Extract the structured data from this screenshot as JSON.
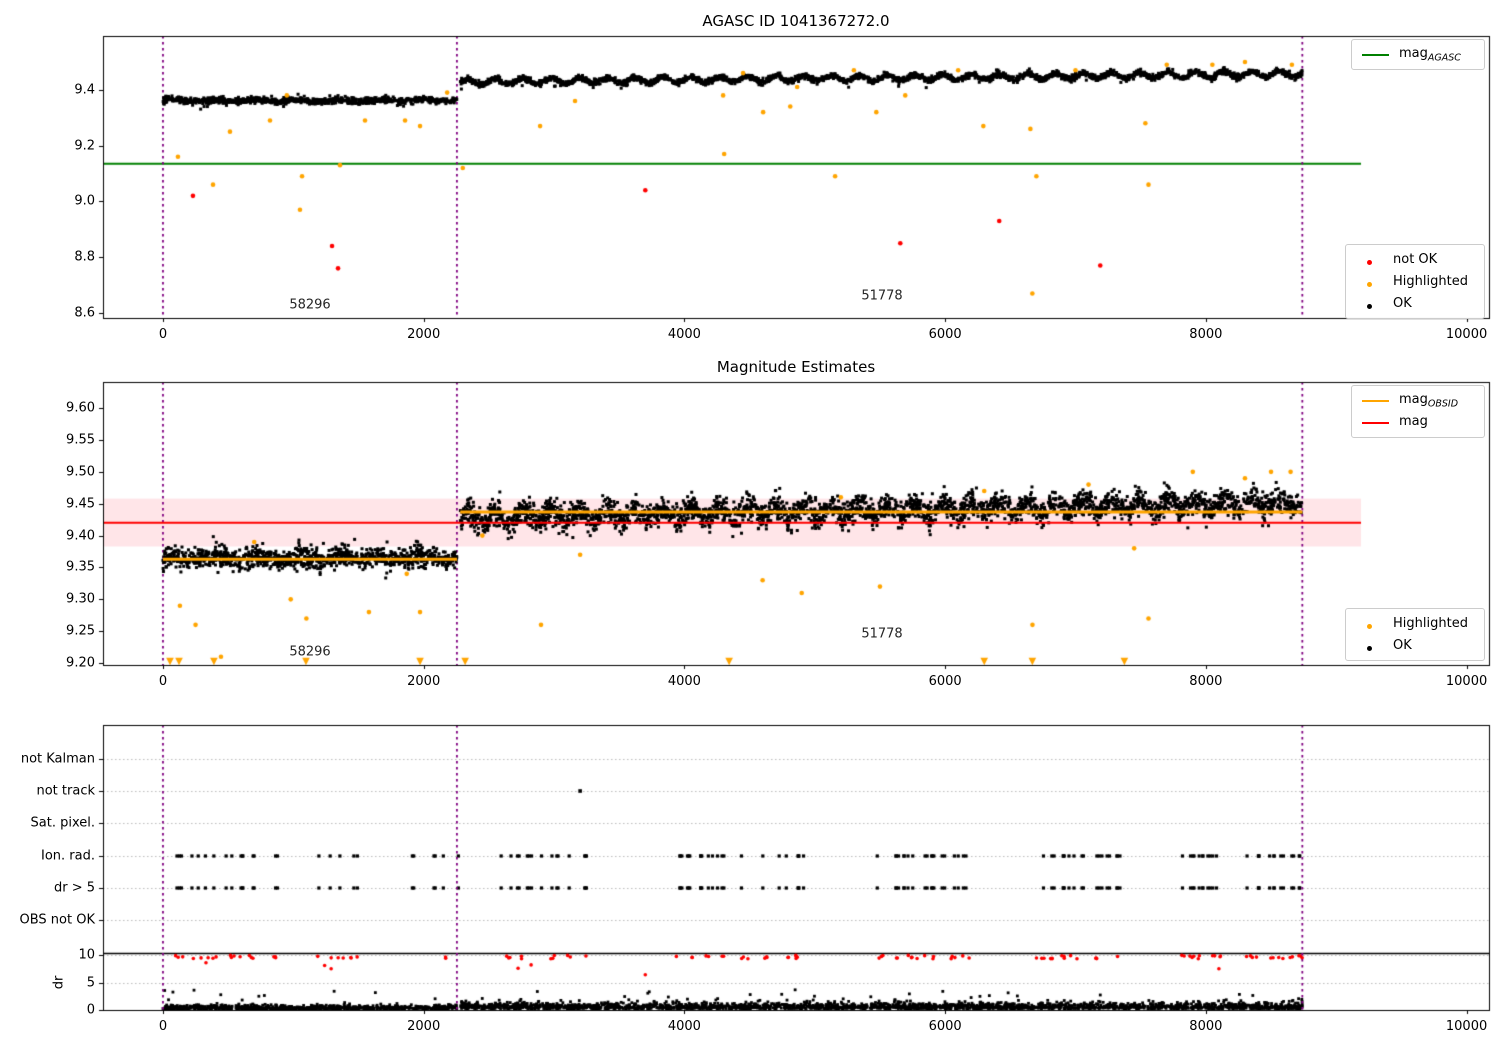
{
  "colors": {
    "ok": "#000000",
    "highlighted": "#ffa500",
    "not_ok": "#ff0000",
    "agasc_line": "#008000",
    "obsid_line": "#ffa500",
    "mag_line": "#ff0000",
    "mag_band": "rgba(255,110,130,0.18)",
    "vline": "#800080",
    "grid": "#bbbbbb",
    "background": "#ffffff"
  },
  "chart_data": [
    {
      "id": "agasc_mag_plot",
      "type": "scatter",
      "title": "AGASC ID 1041367272.0",
      "xlim": [
        -460,
        10172
      ],
      "ylim": [
        8.582,
        9.593
      ],
      "xticks": {
        "values": [
          0,
          2000,
          4000,
          6000,
          8000,
          10000
        ],
        "labels": [
          "0",
          "2000",
          "4000",
          "6000",
          "8000",
          "10000"
        ]
      },
      "yticks": {
        "values": [
          8.6,
          8.8,
          9.0,
          9.2,
          9.4
        ],
        "labels": [
          "8.6",
          "8.8",
          "9.0",
          "9.2",
          "9.4"
        ]
      },
      "agasc_mag": 9.135,
      "line_x_end": 9190,
      "vlines": [
        0,
        2255,
        8740
      ],
      "obsids": [
        {
          "label": "58296",
          "x0": 0,
          "x1": 2255,
          "label_pos": [
            1128,
            8.632
          ]
        },
        {
          "label": "51778",
          "x0": 2280,
          "x1": 8740,
          "label_pos": [
            5520,
            8.664
          ]
        }
      ],
      "ok_segments": [
        {
          "x0": 0,
          "x1": 2255,
          "n": 950,
          "base": 9.362,
          "trend": 0.0,
          "wave_amp": 0.003,
          "wave_period": 320,
          "noise": 0.0055
        },
        {
          "x0": 2280,
          "x1": 8740,
          "n": 2700,
          "base": 9.428,
          "trend": 0.03,
          "wave_amp": 0.01,
          "wave_period": 215,
          "noise": 0.005
        }
      ],
      "highlighted": [
        [
          115,
          9.16
        ],
        [
          384,
          9.06
        ],
        [
          514,
          9.25
        ],
        [
          821,
          9.29
        ],
        [
          950,
          9.38
        ],
        [
          1051,
          8.97
        ],
        [
          1067,
          9.09
        ],
        [
          1358,
          9.13
        ],
        [
          1550,
          9.29
        ],
        [
          1857,
          9.29
        ],
        [
          1972,
          9.27
        ],
        [
          2180,
          9.39
        ],
        [
          2300,
          9.12
        ],
        [
          2893,
          9.27
        ],
        [
          3161,
          9.36
        ],
        [
          4297,
          9.38
        ],
        [
          4305,
          9.17
        ],
        [
          4450,
          9.46
        ],
        [
          4604,
          9.32
        ],
        [
          4812,
          9.34
        ],
        [
          4865,
          9.41
        ],
        [
          5156,
          9.09
        ],
        [
          5300,
          9.47
        ],
        [
          5472,
          9.32
        ],
        [
          5694,
          9.38
        ],
        [
          6100,
          9.47
        ],
        [
          6293,
          9.27
        ],
        [
          6654,
          9.26
        ],
        [
          6669,
          8.67
        ],
        [
          6700,
          9.09
        ],
        [
          7000,
          9.47
        ],
        [
          7536,
          9.28
        ],
        [
          7560,
          9.06
        ],
        [
          7700,
          9.49
        ],
        [
          8050,
          9.49
        ],
        [
          8300,
          9.5
        ],
        [
          8660,
          9.49
        ]
      ],
      "not_ok": [
        [
          230,
          9.02
        ],
        [
          1297,
          8.84
        ],
        [
          1343,
          8.76
        ],
        [
          3700,
          9.04
        ],
        [
          5656,
          8.85
        ],
        [
          6415,
          8.93
        ],
        [
          7190,
          8.77
        ]
      ],
      "legend": {
        "line": {
          "base": "mag",
          "sub": "AGASC",
          "color": "#008000"
        },
        "points": [
          {
            "label": "not OK",
            "color": "#ff0000"
          },
          {
            "label": "Highlighted",
            "color": "#ffa500"
          },
          {
            "label": "OK",
            "color": "#000000"
          }
        ]
      }
    },
    {
      "id": "magnitude_estimates_plot",
      "type": "scatter",
      "title": "Magnitude Estimates",
      "xlim": [
        -460,
        10172
      ],
      "ylim": [
        9.197,
        9.641
      ],
      "xticks": {
        "values": [
          0,
          2000,
          4000,
          6000,
          8000,
          10000
        ],
        "labels": [
          "0",
          "2000",
          "4000",
          "6000",
          "8000",
          "10000"
        ]
      },
      "yticks": {
        "values": [
          9.2,
          9.25,
          9.3,
          9.35,
          9.4,
          9.45,
          9.5,
          9.55,
          9.6
        ],
        "labels": [
          "9.20",
          "9.25",
          "9.30",
          "9.35",
          "9.40",
          "9.45",
          "9.50",
          "9.55",
          "9.60"
        ]
      },
      "mag_line": 9.42,
      "mag_band": [
        9.383,
        9.458
      ],
      "line_x_end": 9190,
      "obsid_lines": [
        {
          "x0": 0,
          "x1": 2255,
          "mag": 9.363
        },
        {
          "x0": 2280,
          "x1": 8740,
          "mag": 9.437
        }
      ],
      "vlines": [
        0,
        2255,
        8740
      ],
      "obsids": [
        {
          "label": "58296",
          "x0": 0,
          "x1": 2255,
          "label_pos": [
            1128,
            9.218
          ]
        },
        {
          "label": "51778",
          "x0": 2280,
          "x1": 8740,
          "label_pos": [
            5520,
            9.246
          ]
        }
      ],
      "ok_segments": [
        {
          "x0": 0,
          "x1": 2255,
          "n": 1100,
          "base": 9.365,
          "trend": 0.0,
          "wave_amp": 0.003,
          "wave_period": 320,
          "noise": 0.008
        },
        {
          "x0": 2280,
          "x1": 8740,
          "n": 3000,
          "base": 9.428,
          "trend": 0.024,
          "wave_amp": 0.009,
          "wave_period": 215,
          "noise": 0.01
        }
      ],
      "highlighted": [
        [
          130,
          9.29
        ],
        [
          250,
          9.26
        ],
        [
          445,
          9.21
        ],
        [
          700,
          9.39
        ],
        [
          980,
          9.3
        ],
        [
          1100,
          9.27
        ],
        [
          1580,
          9.28
        ],
        [
          1870,
          9.34
        ],
        [
          1972,
          9.28
        ],
        [
          2450,
          9.4
        ],
        [
          2900,
          9.26
        ],
        [
          3200,
          9.37
        ],
        [
          4600,
          9.33
        ],
        [
          4900,
          9.31
        ],
        [
          5200,
          9.46
        ],
        [
          5500,
          9.32
        ],
        [
          6300,
          9.47
        ],
        [
          6670,
          9.26
        ],
        [
          7100,
          9.48
        ],
        [
          7450,
          9.38
        ],
        [
          7560,
          9.27
        ],
        [
          7900,
          9.5
        ],
        [
          8300,
          9.49
        ],
        [
          8500,
          9.5
        ],
        [
          8650,
          9.5
        ]
      ],
      "clipped_low_x": [
        54,
        123,
        391,
        1097,
        1972,
        2318,
        4343,
        6300,
        6669,
        7375
      ],
      "legend": {
        "lines": [
          {
            "base": "mag",
            "sub": "OBSID",
            "color": "#ffa500"
          },
          {
            "base": "mag",
            "sub": "",
            "color": "#ff0000"
          }
        ],
        "points": [
          {
            "label": "Highlighted",
            "color": "#ffa500"
          },
          {
            "label": "OK",
            "color": "#000000"
          }
        ]
      }
    },
    {
      "id": "flags_plot",
      "type": "scatter",
      "categories": [
        "not Kalman",
        "not track",
        "Sat. pixel.",
        "Ion. rad.",
        "dr > 5",
        "OBS not OK"
      ],
      "xlim": [
        -460,
        10172
      ],
      "xticks": {
        "values": [
          0,
          2000,
          4000,
          6000,
          8000,
          10000
        ],
        "labels": [
          "0",
          "2000",
          "4000",
          "6000",
          "8000",
          "10000"
        ]
      },
      "vlines": [
        0,
        2255,
        8740
      ],
      "flag_rows": {
        "ion_rad_and_dr5_x": [
          130,
          246,
          322,
          400,
          514,
          590,
          691,
          859,
          1205,
          1282,
          1358,
          1473,
          1934,
          2080,
          2164,
          2279,
          2586,
          2663,
          2740,
          2816,
          2932,
          3008,
          3123,
          3239,
          3968,
          4044,
          4121,
          4198,
          4275,
          4466,
          4620,
          4697,
          4773,
          4850,
          4889,
          5503,
          5618,
          5694,
          5771,
          5848,
          5925,
          6001,
          6078,
          6155,
          6730,
          6807,
          6884,
          6961,
          7037,
          7191,
          7268,
          7344,
          7805,
          7882,
          7958,
          8035,
          8112,
          8342,
          8419,
          8495,
          8572,
          8649,
          8726
        ],
        "not_track_x": [
          3200
        ]
      },
      "dr": {
        "ylabel": "dr",
        "ticks": {
          "values": [
            0,
            5,
            10
          ],
          "labels": [
            "0",
            "5",
            "10"
          ]
        },
        "hline": 10,
        "black_segments": [
          {
            "x0": 0,
            "x1": 2255,
            "n": 800,
            "base": 0.35
          },
          {
            "x0": 2280,
            "x1": 8740,
            "n": 2300,
            "base": 0.55
          }
        ],
        "red_high_range": [
          9.3,
          9.95
        ],
        "red_extra": [
          [
            330,
            8.6
          ],
          [
            1240,
            8.1
          ],
          [
            1290,
            7.5
          ],
          [
            2724,
            7.6
          ],
          [
            2824,
            8.2
          ],
          [
            3700,
            6.4
          ],
          [
            8100,
            7.5
          ]
        ]
      }
    }
  ]
}
